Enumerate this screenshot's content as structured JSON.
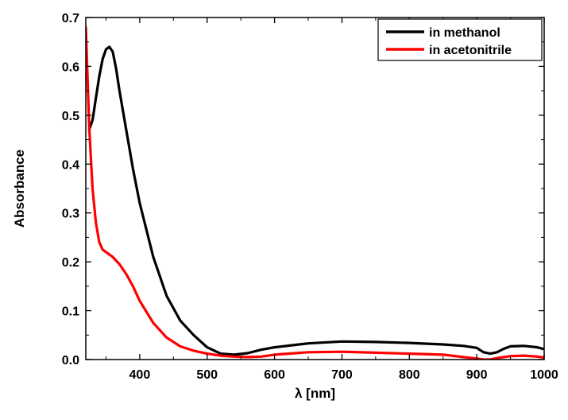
{
  "chart_data": {
    "type": "line",
    "title": "",
    "xlabel": "λ [nm]",
    "ylabel": "Absorbance",
    "xlim": [
      320,
      1000
    ],
    "ylim": [
      0.0,
      0.7
    ],
    "x_ticks": [
      400,
      500,
      600,
      700,
      800,
      900,
      1000
    ],
    "x_tick_labels": [
      "400",
      "500",
      "600",
      "700",
      "800",
      "900",
      "1000"
    ],
    "y_ticks": [
      0.0,
      0.1,
      0.2,
      0.3,
      0.4,
      0.5,
      0.6,
      0.7
    ],
    "y_tick_labels": [
      "0.0",
      "0.1",
      "0.2",
      "0.3",
      "0.4",
      "0.5",
      "0.6",
      "0.7"
    ],
    "grid": false,
    "legend_position": "top-right",
    "series": [
      {
        "name": "in methanol",
        "color": "#000000",
        "x": [
          325,
          330,
          335,
          340,
          345,
          350,
          355,
          360,
          365,
          370,
          380,
          390,
          400,
          420,
          440,
          460,
          480,
          500,
          520,
          540,
          560,
          580,
          600,
          650,
          700,
          750,
          800,
          850,
          880,
          900,
          910,
          920,
          930,
          940,
          950,
          970,
          990,
          1000
        ],
        "y": [
          0.47,
          0.49,
          0.535,
          0.58,
          0.615,
          0.635,
          0.64,
          0.63,
          0.595,
          0.55,
          0.47,
          0.39,
          0.32,
          0.21,
          0.13,
          0.08,
          0.05,
          0.025,
          0.012,
          0.01,
          0.013,
          0.02,
          0.025,
          0.033,
          0.037,
          0.036,
          0.034,
          0.031,
          0.028,
          0.024,
          0.015,
          0.012,
          0.015,
          0.022,
          0.027,
          0.028,
          0.025,
          0.021
        ]
      },
      {
        "name": "in acetonitrile",
        "color": "#ff0000",
        "x": [
          320,
          322,
          325,
          328,
          330,
          335,
          340,
          345,
          350,
          360,
          370,
          380,
          390,
          400,
          420,
          440,
          460,
          480,
          500,
          520,
          540,
          560,
          580,
          600,
          650,
          700,
          750,
          800,
          850,
          880,
          900,
          910,
          920,
          930,
          950,
          970,
          990,
          1000
        ],
        "y": [
          0.68,
          0.6,
          0.48,
          0.4,
          0.35,
          0.28,
          0.24,
          0.225,
          0.22,
          0.21,
          0.195,
          0.175,
          0.15,
          0.12,
          0.075,
          0.045,
          0.027,
          0.018,
          0.012,
          0.008,
          0.006,
          0.005,
          0.006,
          0.01,
          0.015,
          0.016,
          0.014,
          0.012,
          0.01,
          0.005,
          0.002,
          0.0,
          0.0,
          0.003,
          0.007,
          0.008,
          0.006,
          0.004
        ]
      }
    ]
  }
}
